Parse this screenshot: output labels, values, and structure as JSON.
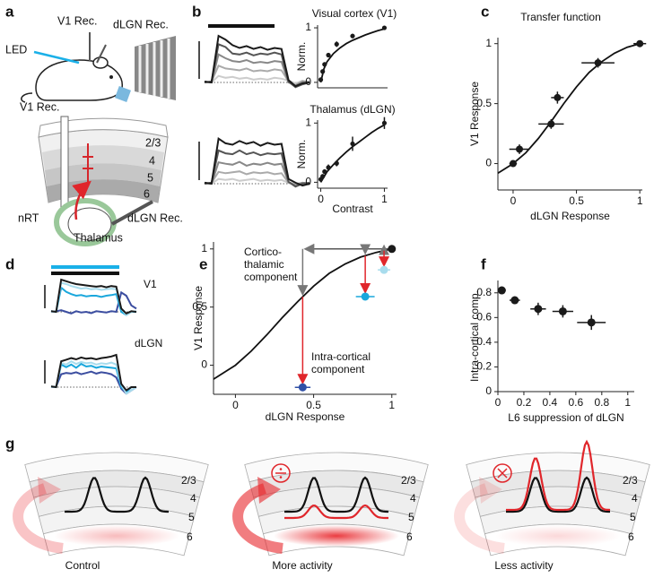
{
  "panel_letters": [
    "a",
    "b",
    "c",
    "d",
    "e",
    "f",
    "g"
  ],
  "panel_a": {
    "labels": [
      "LED",
      "V1 Rec.",
      "dLGN Rec.",
      "V1 Rec.",
      "2/3",
      "4",
      "5",
      "6",
      "nRT",
      "Thalamus",
      "dLGN Rec."
    ]
  },
  "panel_g": {
    "layers": [
      "2/3",
      "4",
      "5",
      "6"
    ],
    "conditions": [
      "Control",
      "More activity",
      "Less activity"
    ]
  },
  "chart_data": [
    {
      "type": "line",
      "series": [
        {
          "color": "#1a1a1a",
          "values": [
            0.02,
            0,
            1.0,
            0.92,
            0.8,
            0.74,
            0.78,
            0.72,
            0.76,
            0.7,
            0.74,
            0.72,
            0.05,
            -0.08,
            -0.02,
            0.0
          ]
        },
        {
          "color": "#555555",
          "values": [
            0,
            0.02,
            0.82,
            0.76,
            0.62,
            0.6,
            0.64,
            0.58,
            0.62,
            0.6,
            0.64,
            0.6,
            0.02,
            -0.1,
            -0.04,
            0.0
          ]
        },
        {
          "color": "#888888",
          "values": [
            0.01,
            0,
            0.6,
            0.52,
            0.46,
            0.44,
            0.48,
            0.42,
            0.44,
            0.42,
            0.46,
            0.44,
            0.0,
            -0.06,
            0.02,
            0.0
          ]
        },
        {
          "color": "#aaaaaa",
          "values": [
            0,
            0.02,
            0.36,
            0.3,
            0.28,
            0.26,
            0.3,
            0.24,
            0.26,
            0.24,
            0.28,
            0.26,
            0.02,
            -0.1,
            0.0,
            0.02
          ]
        },
        {
          "color": "#cccccc",
          "values": [
            0.02,
            0,
            0.14,
            0.1,
            0.12,
            0.08,
            0.1,
            0.06,
            0.08,
            0.06,
            0.1,
            0.08,
            0.04,
            -0.02,
            0.04,
            0.0
          ]
        }
      ]
    },
    {
      "type": "scatter",
      "title": "Visual cortex (V1)",
      "ylabel": "Norm.",
      "x": [
        0,
        0.03,
        0.06,
        0.12,
        0.25,
        0.5,
        1
      ],
      "values": [
        0.05,
        0.2,
        0.33,
        0.5,
        0.7,
        0.85,
        1.0
      ],
      "yerr": [
        0.03,
        0.03,
        0.04,
        0.04,
        0.05,
        0.04,
        0.02
      ],
      "fit": {
        "x": [
          0,
          0.05,
          0.1,
          0.2,
          0.3,
          0.4,
          0.5,
          0.6,
          0.7,
          0.8,
          0.9,
          1
        ],
        "values": [
          0,
          0.25,
          0.38,
          0.53,
          0.63,
          0.71,
          0.77,
          0.82,
          0.87,
          0.91,
          0.95,
          0.98
        ]
      },
      "color": "#1a1a1a",
      "xlim": [
        -0.05,
        1.05
      ],
      "ylim": [
        -0.1,
        1.05
      ],
      "yticks": [
        0,
        1
      ]
    },
    {
      "type": "line",
      "series": [
        {
          "color": "#1a1a1a",
          "values": [
            0.02,
            0,
            0.95,
            0.85,
            0.82,
            0.9,
            0.84,
            0.88,
            0.8,
            0.86,
            0.82,
            0.84,
            0.1,
            0.02,
            -0.04,
            0.0
          ]
        },
        {
          "color": "#555555",
          "values": [
            0,
            0.02,
            0.7,
            0.64,
            0.62,
            0.7,
            0.62,
            0.66,
            0.6,
            0.64,
            0.62,
            0.64,
            0.04,
            -0.06,
            0.0,
            0.02
          ]
        },
        {
          "color": "#888888",
          "values": [
            0.01,
            0,
            0.45,
            0.42,
            0.4,
            0.46,
            0.38,
            0.42,
            0.4,
            0.44,
            0.4,
            0.42,
            0.04,
            -0.04,
            0.02,
            0
          ]
        },
        {
          "color": "#aaaaaa",
          "values": [
            0,
            0.02,
            0.25,
            0.22,
            0.24,
            0.26,
            0.2,
            0.24,
            0.22,
            0.24,
            0.2,
            0.22,
            0.02,
            -0.02,
            0.02,
            0
          ]
        },
        {
          "color": "#cccccc",
          "values": [
            0.02,
            0,
            0.1,
            0.08,
            0.1,
            0.06,
            0.08,
            0.1,
            0.06,
            0.08,
            0.06,
            0.08,
            0.02,
            0,
            0.02,
            0
          ]
        }
      ]
    },
    {
      "type": "scatter",
      "title": "Thalamus (dLGN)",
      "ylabel": "Norm.",
      "xlabel": "Contrast",
      "x": [
        0,
        0.03,
        0.06,
        0.12,
        0.25,
        0.5,
        1
      ],
      "values": [
        0.05,
        0.1,
        0.18,
        0.25,
        0.32,
        0.65,
        1.0
      ],
      "yerr": [
        0.03,
        0.03,
        0.04,
        0.05,
        0.05,
        0.12,
        0.1
      ],
      "fit": {
        "x": [
          0,
          0.1,
          0.2,
          0.3,
          0.4,
          0.5,
          0.6,
          0.7,
          0.8,
          0.9,
          1
        ],
        "values": [
          0,
          0.18,
          0.3,
          0.41,
          0.51,
          0.6,
          0.68,
          0.76,
          0.84,
          0.91,
          0.97
        ]
      },
      "color": "#1a1a1a",
      "xlim": [
        -0.05,
        1.05
      ],
      "ylim": [
        -0.1,
        1.05
      ],
      "xticks": [
        0,
        1
      ],
      "yticks": [
        0,
        1
      ]
    },
    {
      "type": "scatter",
      "title": "Transfer function",
      "xlabel": "dLGN Response",
      "ylabel": "V1 Response",
      "x": [
        0,
        0.05,
        0.3,
        0.35,
        0.67,
        1.0
      ],
      "values": [
        0,
        0.12,
        0.33,
        0.55,
        0.84,
        1.0
      ],
      "xerr": [
        0.03,
        0.08,
        0.1,
        0.05,
        0.13,
        0.05
      ],
      "yerr": [
        0.02,
        0.04,
        0.04,
        0.05,
        0.04,
        0.02
      ],
      "fit": {
        "x": [
          -0.12,
          0,
          0.1,
          0.2,
          0.3,
          0.4,
          0.5,
          0.6,
          0.7,
          0.8,
          0.9,
          1.0
        ],
        "values": [
          -0.08,
          0,
          0.09,
          0.21,
          0.35,
          0.5,
          0.64,
          0.76,
          0.85,
          0.92,
          0.97,
          1.0
        ]
      },
      "color": "#1a1a1a",
      "xlim": [
        -0.12,
        1.02
      ],
      "ylim": [
        -0.22,
        1.05
      ],
      "xticks": [
        0,
        0.5,
        1
      ],
      "yticks": [
        0,
        0.5,
        1
      ]
    },
    {
      "type": "line",
      "title": "V1",
      "series": [
        {
          "color": "#1a1a1a",
          "values": [
            0.02,
            0,
            1.0,
            0.95,
            0.9,
            0.86,
            0.84,
            0.82,
            0.8,
            0.78,
            0.8,
            0.76,
            0.8,
            0.78,
            0.1,
            -0.05,
            0.02,
            0
          ]
        },
        {
          "color": "#a8dced",
          "values": [
            0,
            0.02,
            0.9,
            0.86,
            0.8,
            0.76,
            0.72,
            0.74,
            0.7,
            0.72,
            0.68,
            0.7,
            0.72,
            0.7,
            0.1,
            -0.1,
            0,
            0.02
          ]
        },
        {
          "color": "#1aa7dc",
          "values": [
            0.02,
            0,
            0.75,
            0.62,
            0.55,
            0.5,
            0.52,
            0.48,
            0.5,
            0.5,
            0.46,
            0.5,
            0.52,
            0.55,
            0.0,
            -0.1,
            0,
            0
          ]
        },
        {
          "color": "#3c4ea0",
          "values": [
            0,
            0.02,
            0.05,
            0.0,
            -0.05,
            0.02,
            -0.02,
            0.0,
            -0.04,
            0.02,
            0,
            -0.02,
            0.02,
            0,
            0.6,
            0.5,
            0.2,
            0.1
          ]
        }
      ]
    },
    {
      "type": "line",
      "title": "dLGN",
      "series": [
        {
          "color": "#1a1a1a",
          "values": [
            0.02,
            0,
            0.8,
            0.85,
            0.9,
            0.86,
            0.92,
            0.88,
            0.9,
            0.86,
            0.9,
            0.92,
            0.95,
            1.0,
            0.1,
            -0.1,
            0,
            0
          ]
        },
        {
          "color": "#a8dced",
          "values": [
            0,
            0.02,
            0.75,
            0.7,
            0.8,
            0.72,
            0.78,
            0.74,
            0.76,
            0.7,
            0.74,
            0.72,
            0.76,
            0.7,
            0.08,
            -0.2,
            -0.1,
            0
          ]
        },
        {
          "color": "#1aa7dc",
          "values": [
            0.02,
            0,
            0.7,
            0.62,
            0.7,
            0.6,
            0.72,
            0.64,
            0.66,
            0.6,
            0.64,
            0.62,
            0.6,
            0.58,
            0.0,
            -0.15,
            0,
            0
          ]
        },
        {
          "color": "#3c4ea0",
          "values": [
            0,
            0.02,
            0.4,
            0.44,
            0.42,
            0.46,
            0.4,
            0.44,
            0.48,
            0.42,
            0.46,
            0.44,
            0.4,
            0.3,
            -0.05,
            -0.2,
            -0.1,
            0
          ]
        }
      ]
    },
    {
      "type": "scatter",
      "xlabel": "dLGN Response",
      "ylabel": "V1 Response",
      "x": [
        0.43,
        0.83,
        0.95,
        1.0
      ],
      "values": [
        -0.19,
        0.59,
        0.82,
        1.0
      ],
      "xerr": [
        0.05,
        0.06,
        0.04,
        0
      ],
      "yerr": [
        0.02,
        0.03,
        0.03,
        0
      ],
      "colors": [
        "#2f4fa6",
        "#1aa7dc",
        "#a8dced",
        "#1a1a1a"
      ],
      "fit": {
        "x": [
          -0.14,
          0,
          0.1,
          0.2,
          0.3,
          0.4,
          0.5,
          0.6,
          0.7,
          0.8,
          0.9,
          1.0
        ],
        "values": [
          -0.12,
          0,
          0.12,
          0.26,
          0.41,
          0.55,
          0.68,
          0.79,
          0.87,
          0.93,
          0.97,
          1.0
        ]
      },
      "annotations": [
        {
          "lines": [
            "Cortico-",
            "thalamic",
            "component"
          ],
          "color": "#777777"
        },
        {
          "lines": [
            "Intra-cortical",
            "component"
          ],
          "color": "#e0262b"
        }
      ],
      "xlim": [
        -0.14,
        1.03
      ],
      "ylim": [
        -0.25,
        1.06
      ],
      "xticks": [
        0,
        0.5,
        1
      ],
      "yticks": [
        0,
        0.5,
        1
      ]
    },
    {
      "type": "scatter",
      "xlabel": "L6 suppression of dLGN",
      "ylabel": "Intra-cortical comp.",
      "x": [
        0.03,
        0.13,
        0.31,
        0.5,
        0.72
      ],
      "values": [
        0.82,
        0.74,
        0.67,
        0.65,
        0.56
      ],
      "xerr": [
        0.03,
        0.04,
        0.06,
        0.08,
        0.11
      ],
      "yerr": [
        0.03,
        0.03,
        0.05,
        0.05,
        0.06
      ],
      "color": "#1a1a1a",
      "xlim": [
        0,
        1.05
      ],
      "ylim": [
        0,
        0.9
      ],
      "xticks": [
        0,
        0.2,
        0.4,
        0.6,
        0.8,
        1
      ],
      "yticks": [
        0,
        0.2,
        0.4,
        0.6,
        0.8
      ]
    }
  ]
}
